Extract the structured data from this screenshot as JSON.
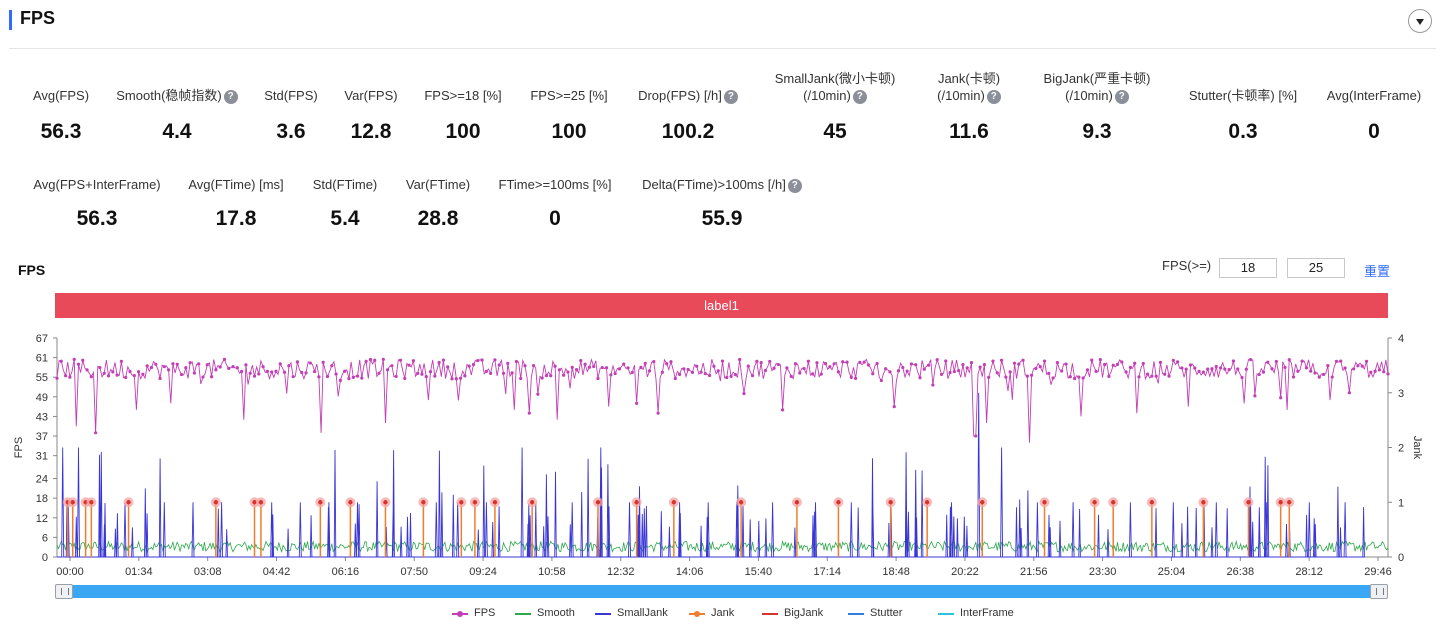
{
  "header": {
    "title": "FPS"
  },
  "metrics_row1": [
    {
      "label": "Avg(FPS)",
      "value": "56.3",
      "help": false
    },
    {
      "label": "Smooth(稳帧指数)",
      "value": "4.4",
      "help": true
    },
    {
      "label": "Std(FPS)",
      "value": "3.6",
      "help": false
    },
    {
      "label": "Var(FPS)",
      "value": "12.8",
      "help": false
    },
    {
      "label": "FPS>=18 [%]",
      "value": "100",
      "help": false
    },
    {
      "label": "FPS>=25 [%]",
      "value": "100",
      "help": false
    },
    {
      "label": "Drop(FPS) [/h]",
      "value": "100.2",
      "help": true
    },
    {
      "label": "SmallJank(微小卡顿)",
      "label2": "(/10min)",
      "value": "45",
      "help": true
    },
    {
      "label": "Jank(卡顿)",
      "label2": "(/10min)",
      "value": "11.6",
      "help": true
    },
    {
      "label": "BigJank(严重卡顿)",
      "label2": "(/10min)",
      "value": "9.3",
      "help": true
    },
    {
      "label": "Stutter(卡顿率) [%]",
      "value": "0.3",
      "help": false
    },
    {
      "label": "Avg(InterFrame)",
      "value": "0",
      "help": false
    }
  ],
  "metrics_row2": [
    {
      "label": "Avg(FPS+InterFrame)",
      "value": "56.3",
      "help": false
    },
    {
      "label": "Avg(FTime) [ms]",
      "value": "17.8",
      "help": false
    },
    {
      "label": "Std(FTime)",
      "value": "5.4",
      "help": false
    },
    {
      "label": "Var(FTime)",
      "value": "28.8",
      "help": false
    },
    {
      "label": "FTime>=100ms [%]",
      "value": "0",
      "help": false
    },
    {
      "label": "Delta(FTime)>100ms [/h]",
      "value": "55.9",
      "help": true
    }
  ],
  "help_glyph": "?",
  "chart_controls": {
    "title": "FPS",
    "threshold_label": "FPS(>=)",
    "threshold_1": "18",
    "threshold_2": "25",
    "reset_label": "重置",
    "band_label": "label1"
  },
  "chart_data": {
    "type": "line",
    "y_left": {
      "label": "FPS",
      "ticks": [
        0,
        6,
        12,
        18,
        24,
        31,
        37,
        43,
        49,
        55,
        61,
        67
      ],
      "range": [
        0,
        67
      ]
    },
    "y_right": {
      "label": "Jank",
      "ticks": [
        0,
        1,
        2,
        3,
        4
      ],
      "range": [
        0,
        4
      ]
    },
    "x_ticks": [
      "00:00",
      "01:34",
      "03:08",
      "04:42",
      "06:16",
      "07:50",
      "09:24",
      "10:58",
      "12:32",
      "14:06",
      "15:40",
      "17:14",
      "18:48",
      "20:22",
      "21:56",
      "23:30",
      "25:04",
      "26:38",
      "28:12",
      "29:46"
    ],
    "x_range_seconds": [
      0,
      1860
    ],
    "legend": [
      {
        "name": "FPS",
        "color": "#c23fb5",
        "marker": true
      },
      {
        "name": "Smooth",
        "color": "#2ea84a",
        "marker": false
      },
      {
        "name": "SmallJank",
        "color": "#3a36d6",
        "marker": false
      },
      {
        "name": "Jank",
        "color": "#f07d2e",
        "marker": true
      },
      {
        "name": "BigJank",
        "color": "#d9342b",
        "marker": false
      },
      {
        "name": "Stutter",
        "color": "#2f7fe0",
        "marker": false
      },
      {
        "name": "InterFrame",
        "color": "#26c6da",
        "marker": false
      }
    ],
    "fps_baseline": 57.5,
    "smooth_baseline": 3.2,
    "fps_dips_seconds": [
      28,
      55,
      110,
      160,
      262,
      320,
      370,
      460,
      520,
      640,
      660,
      700,
      770,
      810,
      840,
      960,
      1015,
      1170,
      1300,
      1360,
      1430,
      1510,
      1580,
      1660,
      1720,
      1780
    ],
    "fps_dips_values": [
      40,
      38,
      45,
      47,
      42,
      50,
      38,
      41,
      48,
      45,
      44,
      42,
      46,
      47,
      44,
      50,
      45,
      46,
      41,
      35,
      43,
      44,
      46,
      47,
      45,
      48
    ],
    "bigjank_seconds": [
      15,
      22,
      40,
      48,
      100,
      222,
      276,
      285,
      368,
      410,
      459,
      512,
      565,
      584,
      612,
      664,
      756,
      810,
      862,
      956,
      1034,
      1092,
      1165,
      1216,
      1293,
      1380,
      1450,
      1476,
      1530,
      1602,
      1665,
      1710,
      1722
    ],
    "bigjank_value": 1,
    "smalljank_spikes_seconds": [
      8,
      30,
      60,
      95,
      150,
      190,
      230,
      300,
      340,
      380,
      420,
      470,
      530,
      560,
      600,
      650,
      720,
      760,
      800,
      870,
      910,
      950,
      1000,
      1060,
      1110,
      1140,
      1200,
      1250,
      1288,
      1320,
      1370,
      1420,
      1500,
      1560,
      1620,
      1690,
      1750,
      1800
    ],
    "smalljank_spike_values": [
      2,
      2,
      1,
      1,
      1,
      1,
      1,
      1,
      1,
      1,
      1,
      1,
      1,
      1,
      1,
      2,
      1,
      2,
      1,
      1,
      1,
      1,
      1,
      1,
      1,
      1,
      1,
      1,
      3,
      2,
      1,
      1,
      1,
      1,
      1,
      1,
      1,
      1
    ]
  }
}
